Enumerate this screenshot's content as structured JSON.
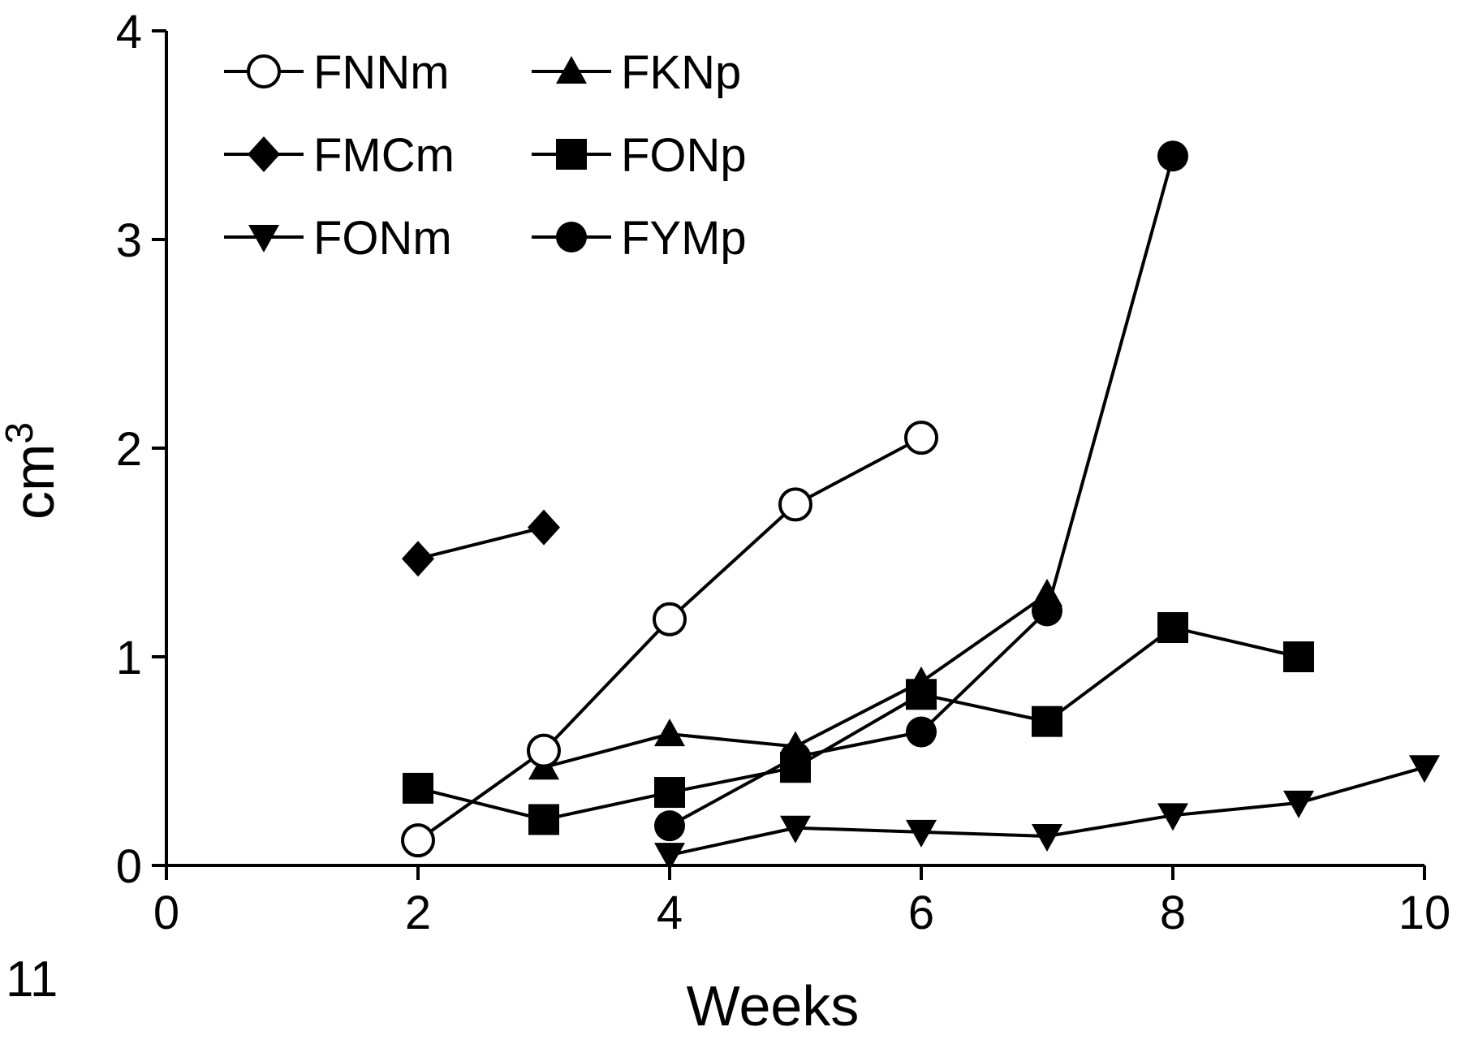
{
  "figure_number": "11",
  "chart_data": {
    "type": "line",
    "title": "",
    "xlabel": "Weeks",
    "ylabel": "cm",
    "ylabel_superscript": "3",
    "xlim": [
      0,
      10
    ],
    "ylim": [
      0,
      4
    ],
    "xticks": [
      "0",
      "2",
      "4",
      "6",
      "8",
      "10"
    ],
    "yticks": [
      "0",
      "1",
      "2",
      "3",
      "4"
    ],
    "grid": false,
    "legend_position": "top-left",
    "series": [
      {
        "name": "FNNm",
        "marker": "circle-open",
        "points": [
          [
            2,
            0.12
          ],
          [
            3,
            0.55
          ],
          [
            4,
            1.18
          ],
          [
            5,
            1.73
          ],
          [
            6,
            2.05
          ]
        ]
      },
      {
        "name": "FMCm",
        "marker": "diamond",
        "points": [
          [
            2,
            1.47
          ],
          [
            3,
            1.62
          ]
        ]
      },
      {
        "name": "FONm",
        "marker": "triangle-down",
        "points": [
          [
            4,
            0.05
          ],
          [
            5,
            0.18
          ],
          [
            6,
            0.16
          ],
          [
            7,
            0.14
          ],
          [
            8,
            0.24
          ],
          [
            9,
            0.3
          ],
          [
            10,
            0.47
          ]
        ]
      },
      {
        "name": "FKNp",
        "marker": "triangle-up",
        "points": [
          [
            3,
            0.47
          ],
          [
            4,
            0.63
          ],
          [
            5,
            0.57
          ],
          [
            6,
            0.88
          ],
          [
            7,
            1.3
          ]
        ]
      },
      {
        "name": "FONp",
        "marker": "square",
        "points": [
          [
            2,
            0.37
          ],
          [
            3,
            0.22
          ],
          [
            4,
            0.35
          ],
          [
            5,
            0.47
          ],
          [
            6,
            0.82
          ],
          [
            7,
            0.69
          ],
          [
            8,
            1.14
          ],
          [
            9,
            1.0
          ]
        ]
      },
      {
        "name": "FYMp",
        "marker": "circle",
        "points": [
          [
            4,
            0.19
          ],
          [
            5,
            0.52
          ],
          [
            6,
            0.64
          ],
          [
            7,
            1.22
          ],
          [
            8,
            3.4
          ]
        ]
      }
    ]
  }
}
